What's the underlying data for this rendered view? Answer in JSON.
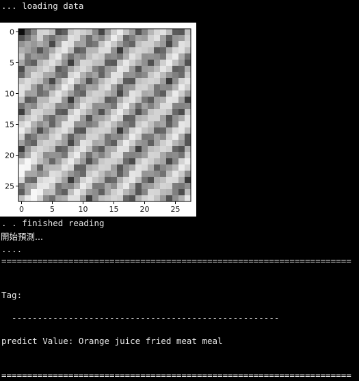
{
  "console": {
    "loading": "... loading data",
    "finished": ". . finished reading",
    "start_predict": "開始預測...",
    "dots": "....",
    "separator": "====================================================================",
    "tag_label": "Tag:",
    "dash_line": "  ----------------------------------------------------",
    "predict_line": "predict Value: Orange juice fried meat meal",
    "separator_bottom": "===================================================================="
  },
  "chart_data": {
    "type": "heatmap",
    "colormap": "gray",
    "grid_size": [
      28,
      28
    ],
    "x_ticks": [
      "0",
      "5",
      "10",
      "15",
      "20",
      "25"
    ],
    "y_ticks": [
      "0",
      "5",
      "10",
      "15",
      "20",
      "25"
    ],
    "xlim": [
      -0.5,
      27.5
    ],
    "ylim": [
      27.5,
      -0.5
    ]
  }
}
